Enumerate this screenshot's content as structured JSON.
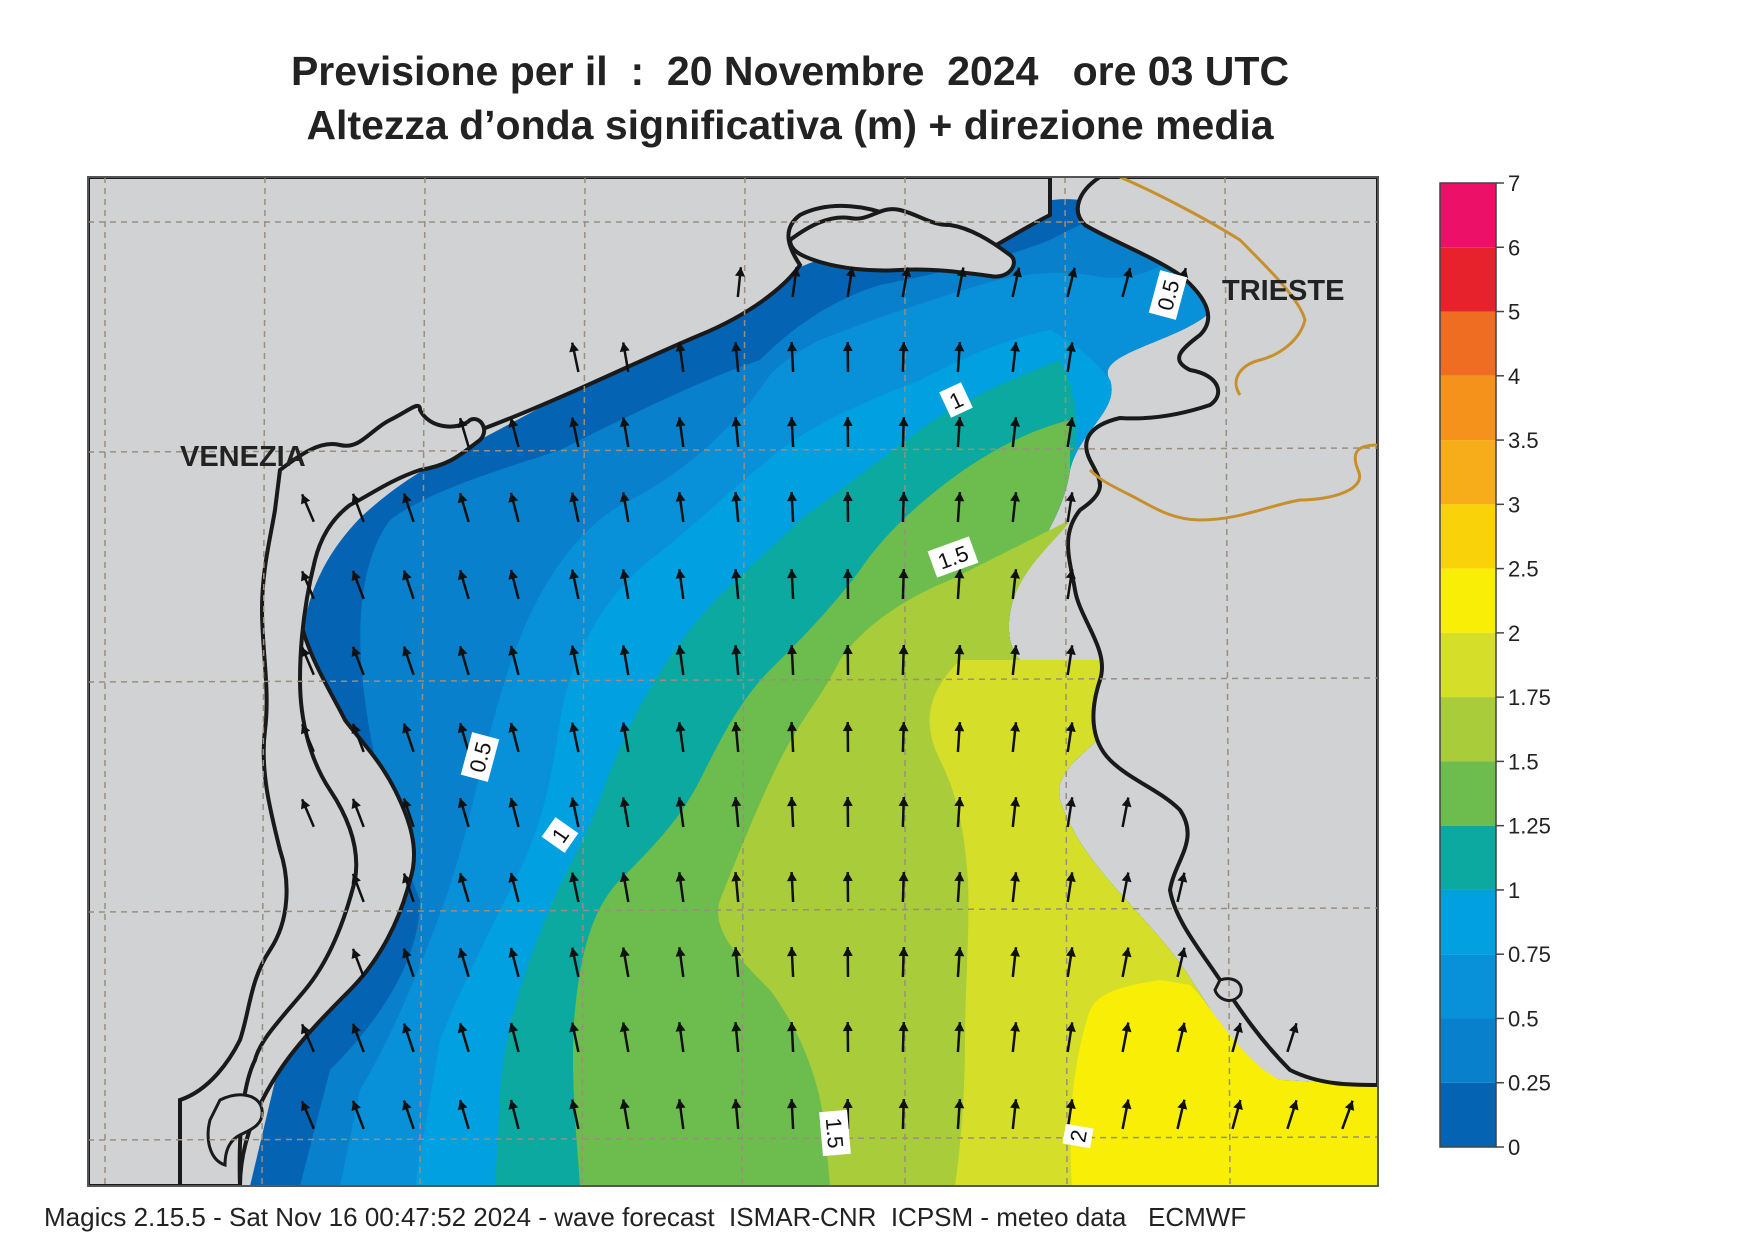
{
  "title_line1": "Previsione per il  :  20 Novembre  2024   ore 03 UTC",
  "title_line2": "Altezza d’onda significativa (m) + direzione media",
  "footer": "Magics 2.15.5 - Sat Nov 16 00:47:52 2024 - wave forecast  ISMAR-CNR  ICPSM - meteo data   ECMWF",
  "cities": [
    {
      "name": "VENEZIA"
    },
    {
      "name": "TRIESTE"
    }
  ],
  "contour_labels": [
    "0.5",
    "1",
    "1.5",
    "0.5",
    "1",
    "1.5",
    "2"
  ],
  "legend": {
    "ticks": [
      "7",
      "6",
      "5",
      "4",
      "3.5",
      "3",
      "2.5",
      "2",
      "1.75",
      "1.5",
      "1.25",
      "1",
      "0.75",
      "0.5",
      "0.25",
      "0"
    ],
    "colors": [
      "#ec1068",
      "#e8222c",
      "#ef6d22",
      "#f4921c",
      "#f7ad19",
      "#fad20a",
      "#f9ee05",
      "#d5df2a",
      "#a8cc3a",
      "#6cbc4e",
      "#0ba9a0",
      "#00a0e1",
      "#0891d8",
      "#0880cc",
      "#0563b4"
    ]
  },
  "colors": {
    "land": "#d1d2d4",
    "coast": "#1a1a1a",
    "border": "#c8902c",
    "grid": "#9a8e7e"
  }
}
